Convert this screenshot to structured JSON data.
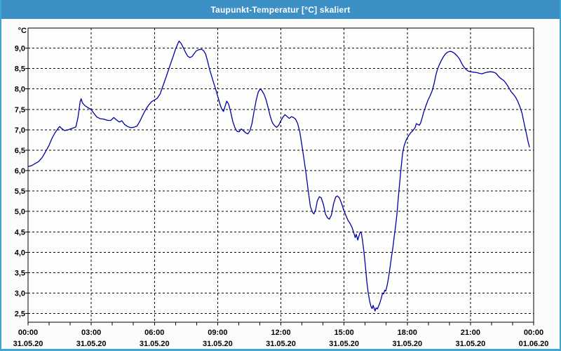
{
  "window": {
    "title": "Taupunkt-Temperatur [°C] skaliert"
  },
  "colors": {
    "titlebar_bg": "#3d90c6",
    "frame_border": "#3aa6d9",
    "window_bg": "#fcfdfa",
    "plot_bg": "#fefefc",
    "grid_color": "#000000",
    "line_color": "#0000a8",
    "title_text": "#ffffff",
    "axis_text": "#000000"
  },
  "chart_data": {
    "type": "line",
    "title": "Taupunkt-Temperatur [°C] skaliert",
    "unit_label": "°C",
    "grid": "dashed",
    "legend": "none",
    "x_axis": {
      "hours_span": 24,
      "major_tick_hours": 3,
      "minor_tick_hours": 1,
      "tick_labels": [
        {
          "time": "00:00",
          "date": "31.05.20"
        },
        {
          "time": "03:00",
          "date": "31.05.20"
        },
        {
          "time": "06:00",
          "date": "31.05.20"
        },
        {
          "time": "09:00",
          "date": "31.05.20"
        },
        {
          "time": "12:00",
          "date": "31.05.20"
        },
        {
          "time": "15:00",
          "date": "31.05.20"
        },
        {
          "time": "18:00",
          "date": "31.05.20"
        },
        {
          "time": "21:00",
          "date": "31.05.20"
        },
        {
          "time": "00:00",
          "date": "01.06.20"
        }
      ]
    },
    "y_axis": {
      "max_label_value": 9.0,
      "min_label_value": 2.5,
      "step": 0.5,
      "tick_labels": [
        "9,0",
        "8,5",
        "8,0",
        "7,5",
        "7,0",
        "6,5",
        "6,0",
        "5,5",
        "5,0",
        "4,5",
        "4,0",
        "3,5",
        "3,0",
        "2,5"
      ],
      "visible_range": [
        2.3,
        9.5
      ]
    },
    "series": [
      {
        "name": "Taupunkt-Temperatur",
        "color": "#0000a8",
        "points": [
          [
            0,
            6.1
          ],
          [
            0.17,
            6.12
          ],
          [
            0.33,
            6.17
          ],
          [
            0.5,
            6.22
          ],
          [
            0.67,
            6.32
          ],
          [
            0.83,
            6.46
          ],
          [
            1,
            6.62
          ],
          [
            1.13,
            6.78
          ],
          [
            1.27,
            6.92
          ],
          [
            1.42,
            7.03
          ],
          [
            1.5,
            7.08
          ],
          [
            1.6,
            7.03
          ],
          [
            1.73,
            6.98
          ],
          [
            1.87,
            6.99
          ],
          [
            2,
            7.02
          ],
          [
            2.13,
            7.04
          ],
          [
            2.27,
            7.07
          ],
          [
            2.37,
            7.3
          ],
          [
            2.47,
            7.68
          ],
          [
            2.52,
            7.76
          ],
          [
            2.58,
            7.66
          ],
          [
            2.7,
            7.59
          ],
          [
            2.85,
            7.54
          ],
          [
            3,
            7.49
          ],
          [
            3.13,
            7.4
          ],
          [
            3.27,
            7.31
          ],
          [
            3.43,
            7.27
          ],
          [
            3.6,
            7.26
          ],
          [
            3.77,
            7.23
          ],
          [
            3.93,
            7.23
          ],
          [
            4.07,
            7.3
          ],
          [
            4.2,
            7.24
          ],
          [
            4.33,
            7.19
          ],
          [
            4.45,
            7.22
          ],
          [
            4.58,
            7.13
          ],
          [
            4.72,
            7.08
          ],
          [
            4.87,
            7.05
          ],
          [
            5.02,
            7.06
          ],
          [
            5.17,
            7.09
          ],
          [
            5.3,
            7.2
          ],
          [
            5.43,
            7.34
          ],
          [
            5.57,
            7.48
          ],
          [
            5.72,
            7.6
          ],
          [
            5.87,
            7.69
          ],
          [
            6,
            7.73
          ],
          [
            6.13,
            7.77
          ],
          [
            6.27,
            7.88
          ],
          [
            6.42,
            8.1
          ],
          [
            6.57,
            8.32
          ],
          [
            6.72,
            8.55
          ],
          [
            6.87,
            8.77
          ],
          [
            7,
            8.97
          ],
          [
            7.1,
            9.1
          ],
          [
            7.17,
            9.17
          ],
          [
            7.27,
            9.11
          ],
          [
            7.38,
            9.0
          ],
          [
            7.48,
            8.89
          ],
          [
            7.58,
            8.8
          ],
          [
            7.68,
            8.77
          ],
          [
            7.78,
            8.79
          ],
          [
            7.88,
            8.86
          ],
          [
            7.98,
            8.93
          ],
          [
            8.1,
            8.96
          ],
          [
            8.23,
            8.97
          ],
          [
            8.33,
            8.94
          ],
          [
            8.43,
            8.85
          ],
          [
            8.52,
            8.68
          ],
          [
            8.62,
            8.47
          ],
          [
            8.72,
            8.3
          ],
          [
            8.82,
            8.13
          ],
          [
            8.92,
            7.97
          ],
          [
            9.02,
            7.79
          ],
          [
            9.12,
            7.61
          ],
          [
            9.2,
            7.5
          ],
          [
            9.28,
            7.45
          ],
          [
            9.35,
            7.57
          ],
          [
            9.43,
            7.7
          ],
          [
            9.52,
            7.63
          ],
          [
            9.62,
            7.43
          ],
          [
            9.72,
            7.2
          ],
          [
            9.82,
            7.05
          ],
          [
            9.92,
            6.96
          ],
          [
            10.02,
            6.95
          ],
          [
            10.12,
            7.02
          ],
          [
            10.22,
            6.98
          ],
          [
            10.32,
            6.93
          ],
          [
            10.43,
            6.9
          ],
          [
            10.53,
            6.97
          ],
          [
            10.63,
            7.15
          ],
          [
            10.73,
            7.45
          ],
          [
            10.83,
            7.73
          ],
          [
            10.93,
            7.93
          ],
          [
            11.02,
            8.0
          ],
          [
            11.1,
            7.96
          ],
          [
            11.2,
            7.87
          ],
          [
            11.3,
            7.73
          ],
          [
            11.4,
            7.53
          ],
          [
            11.5,
            7.32
          ],
          [
            11.6,
            7.17
          ],
          [
            11.7,
            7.1
          ],
          [
            11.8,
            7.06
          ],
          [
            11.9,
            7.11
          ],
          [
            12,
            7.22
          ],
          [
            12.1,
            7.31
          ],
          [
            12.2,
            7.37
          ],
          [
            12.3,
            7.32
          ],
          [
            12.4,
            7.28
          ],
          [
            12.5,
            7.32
          ],
          [
            12.6,
            7.3
          ],
          [
            12.7,
            7.26
          ],
          [
            12.8,
            7.15
          ],
          [
            12.9,
            6.95
          ],
          [
            13,
            6.62
          ],
          [
            13.1,
            6.28
          ],
          [
            13.2,
            5.92
          ],
          [
            13.3,
            5.5
          ],
          [
            13.4,
            5.12
          ],
          [
            13.5,
            4.98
          ],
          [
            13.57,
            4.94
          ],
          [
            13.65,
            5.04
          ],
          [
            13.73,
            5.26
          ],
          [
            13.83,
            5.36
          ],
          [
            13.92,
            5.33
          ],
          [
            14.02,
            5.17
          ],
          [
            14.12,
            4.93
          ],
          [
            14.22,
            4.84
          ],
          [
            14.3,
            4.81
          ],
          [
            14.4,
            4.91
          ],
          [
            14.5,
            5.18
          ],
          [
            14.6,
            5.35
          ],
          [
            14.68,
            5.38
          ],
          [
            14.78,
            5.33
          ],
          [
            14.88,
            5.2
          ],
          [
            14.98,
            5.04
          ],
          [
            15.08,
            4.91
          ],
          [
            15.18,
            4.79
          ],
          [
            15.28,
            4.71
          ],
          [
            15.38,
            4.61
          ],
          [
            15.47,
            4.47
          ],
          [
            15.53,
            4.36
          ],
          [
            15.58,
            4.44
          ],
          [
            15.65,
            4.3
          ],
          [
            15.7,
            4.39
          ],
          [
            15.77,
            4.5
          ],
          [
            15.82,
            4.47
          ],
          [
            15.88,
            4.27
          ],
          [
            15.95,
            3.98
          ],
          [
            16.02,
            3.62
          ],
          [
            16.08,
            3.28
          ],
          [
            16.15,
            2.99
          ],
          [
            16.22,
            2.79
          ],
          [
            16.28,
            2.67
          ],
          [
            16.33,
            2.62
          ],
          [
            16.38,
            2.7
          ],
          [
            16.43,
            2.62
          ],
          [
            16.47,
            2.56
          ],
          [
            16.52,
            2.64
          ],
          [
            16.58,
            2.61
          ],
          [
            16.63,
            2.67
          ],
          [
            16.7,
            2.76
          ],
          [
            16.77,
            2.88
          ],
          [
            16.83,
            3.0
          ],
          [
            16.88,
            2.98
          ],
          [
            16.93,
            3.07
          ],
          [
            16.98,
            3.05
          ],
          [
            17.05,
            3.2
          ],
          [
            17.12,
            3.4
          ],
          [
            17.18,
            3.62
          ],
          [
            17.25,
            3.88
          ],
          [
            17.32,
            4.12
          ],
          [
            17.38,
            4.38
          ],
          [
            17.45,
            4.65
          ],
          [
            17.52,
            4.98
          ],
          [
            17.58,
            5.35
          ],
          [
            17.65,
            5.75
          ],
          [
            17.72,
            6.12
          ],
          [
            17.78,
            6.42
          ],
          [
            17.85,
            6.6
          ],
          [
            17.92,
            6.71
          ],
          [
            17.98,
            6.78
          ],
          [
            18.07,
            6.86
          ],
          [
            18.17,
            6.93
          ],
          [
            18.27,
            6.98
          ],
          [
            18.37,
            7.05
          ],
          [
            18.43,
            7.15
          ],
          [
            18.5,
            7.13
          ],
          [
            18.57,
            7.11
          ],
          [
            18.63,
            7.16
          ],
          [
            18.7,
            7.28
          ],
          [
            18.78,
            7.43
          ],
          [
            18.88,
            7.58
          ],
          [
            18.98,
            7.72
          ],
          [
            19.08,
            7.83
          ],
          [
            19.18,
            7.95
          ],
          [
            19.27,
            8.12
          ],
          [
            19.35,
            8.32
          ],
          [
            19.43,
            8.47
          ],
          [
            19.52,
            8.59
          ],
          [
            19.62,
            8.7
          ],
          [
            19.72,
            8.79
          ],
          [
            19.82,
            8.86
          ],
          [
            19.92,
            8.9
          ],
          [
            20.02,
            8.92
          ],
          [
            20.13,
            8.91
          ],
          [
            20.25,
            8.87
          ],
          [
            20.37,
            8.81
          ],
          [
            20.47,
            8.74
          ],
          [
            20.57,
            8.64
          ],
          [
            20.67,
            8.55
          ],
          [
            20.77,
            8.49
          ],
          [
            20.88,
            8.44
          ],
          [
            21,
            8.42
          ],
          [
            21.15,
            8.41
          ],
          [
            21.3,
            8.4
          ],
          [
            21.45,
            8.38
          ],
          [
            21.55,
            8.37
          ],
          [
            21.65,
            8.39
          ],
          [
            21.8,
            8.41
          ],
          [
            21.95,
            8.42
          ],
          [
            22.1,
            8.41
          ],
          [
            22.22,
            8.38
          ],
          [
            22.33,
            8.31
          ],
          [
            22.45,
            8.25
          ],
          [
            22.58,
            8.21
          ],
          [
            22.7,
            8.13
          ],
          [
            22.82,
            8.03
          ],
          [
            22.93,
            7.93
          ],
          [
            23.05,
            7.86
          ],
          [
            23.15,
            7.79
          ],
          [
            23.25,
            7.69
          ],
          [
            23.35,
            7.56
          ],
          [
            23.45,
            7.4
          ],
          [
            23.53,
            7.2
          ],
          [
            23.6,
            7.03
          ],
          [
            23.67,
            6.87
          ],
          [
            23.73,
            6.72
          ],
          [
            23.8,
            6.58
          ]
        ]
      }
    ]
  }
}
